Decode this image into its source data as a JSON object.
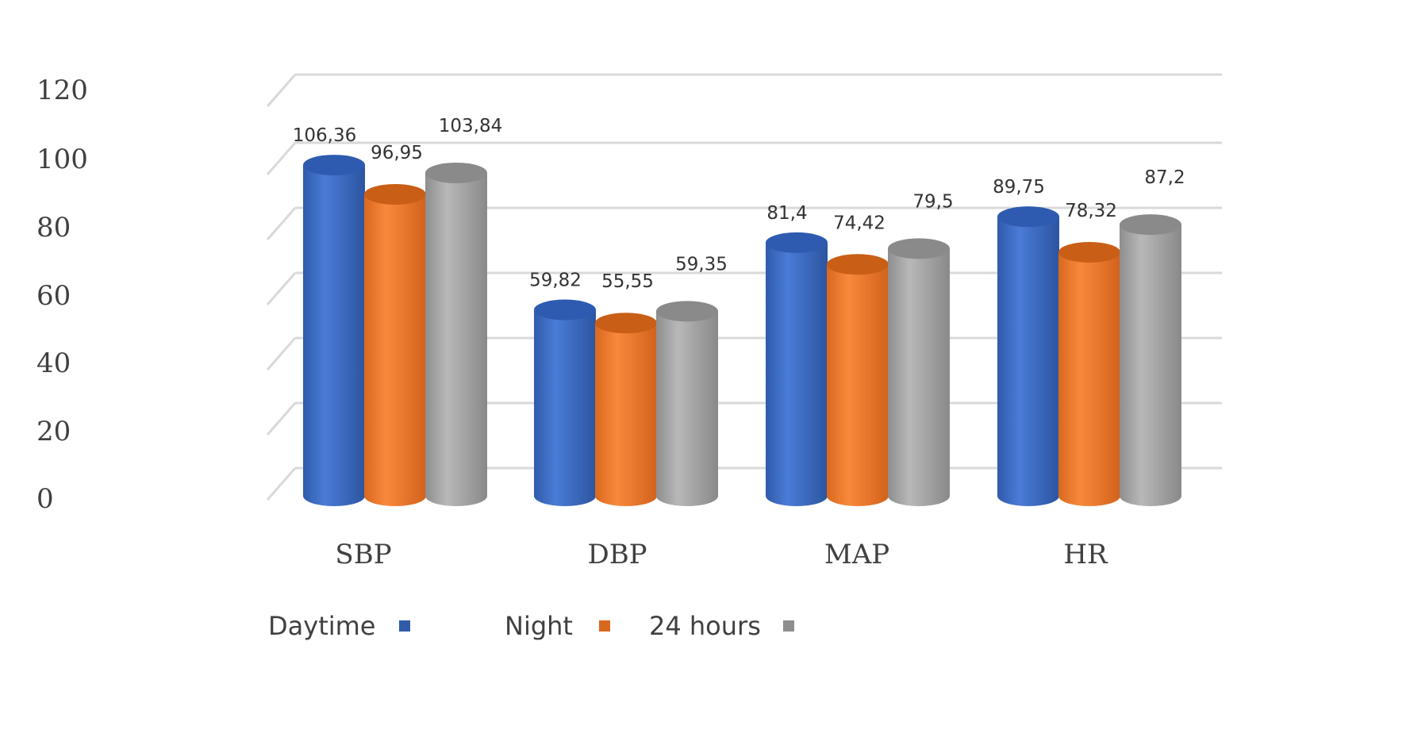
{
  "chart_data": {
    "type": "bar",
    "categories": [
      "SBP",
      "DBP",
      "MAP",
      "HR"
    ],
    "series": [
      {
        "name": "Daytime",
        "values": [
          106.36,
          59.82,
          81.4,
          89.75
        ],
        "labels": [
          "106,36",
          "59,82",
          "81,4",
          "89,75"
        ],
        "color": "#4472C4"
      },
      {
        "name": "Night",
        "values": [
          96.95,
          55.55,
          74.42,
          78.32
        ],
        "labels": [
          "96,95",
          "55,55",
          "74,42",
          "78,32"
        ],
        "color": "#ED7D31"
      },
      {
        "name": "24 hours",
        "values": [
          103.84,
          59.35,
          79.5,
          87.2
        ],
        "labels": [
          "103,84",
          "59,35",
          "79,5",
          "87,2"
        ],
        "color": "#A5A5A5"
      }
    ],
    "yticks": [
      "0",
      "20",
      "40",
      "60",
      "80",
      "100",
      "120"
    ],
    "ylim": [
      0,
      120
    ],
    "grid": true,
    "legend_position": "bottom",
    "style": "3d-cylinder"
  }
}
